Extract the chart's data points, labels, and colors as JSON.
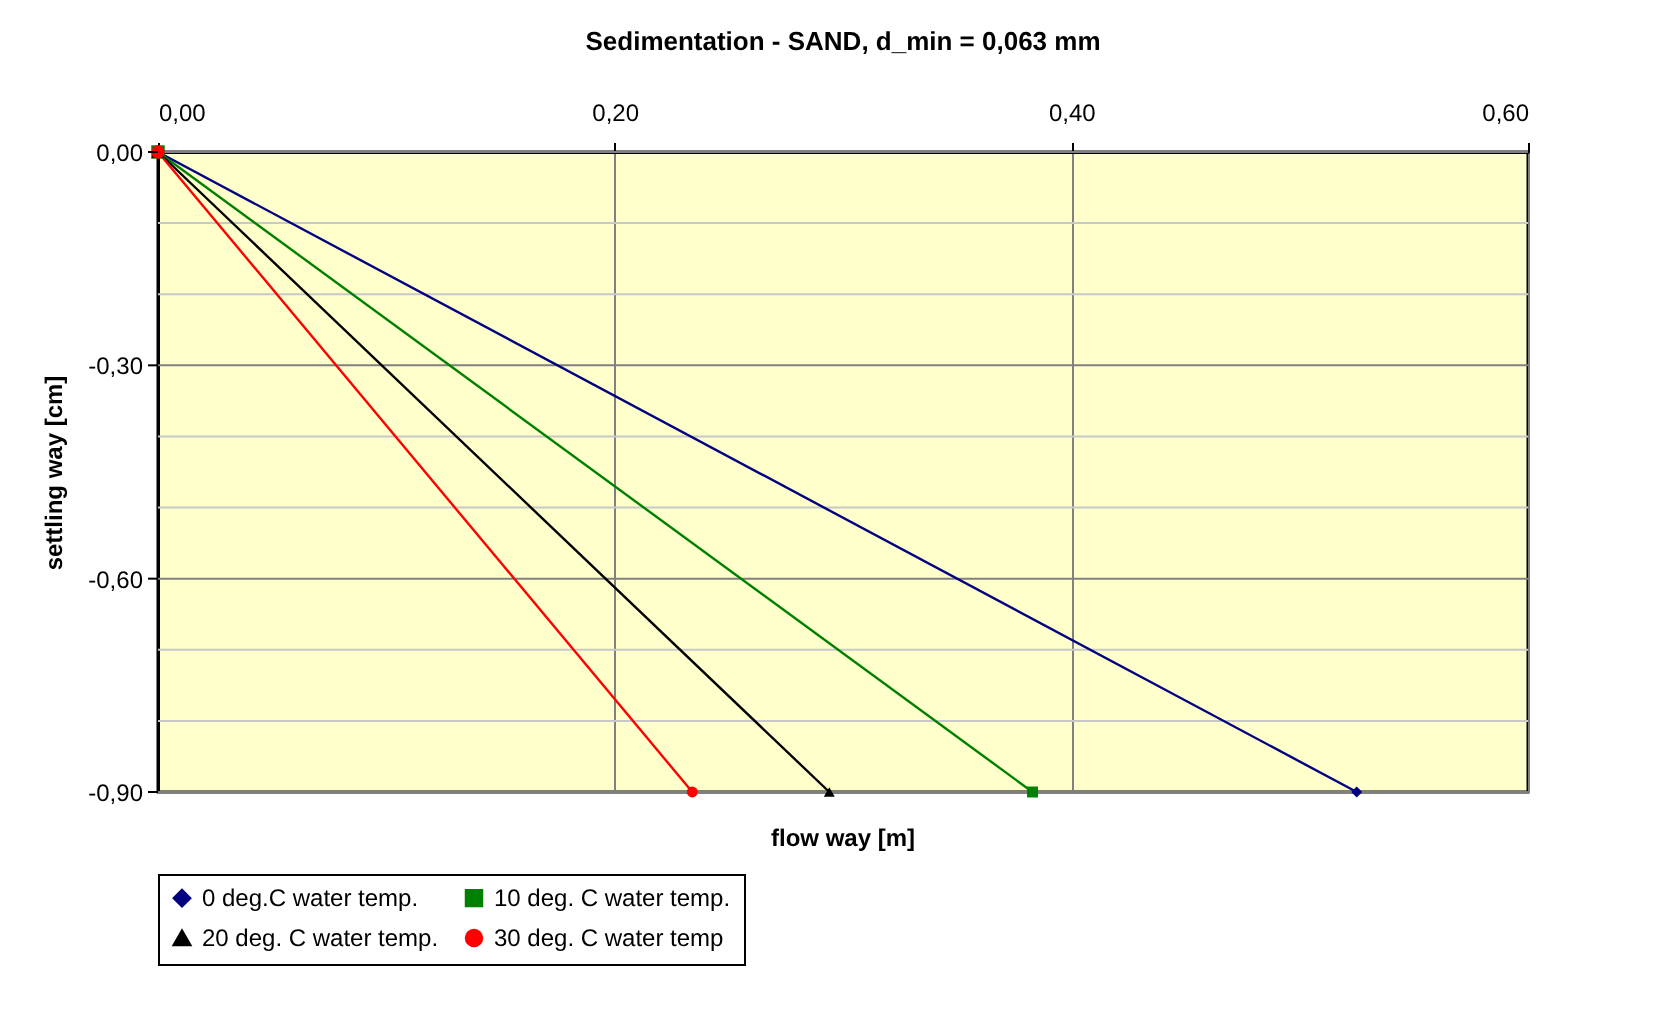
{
  "chart_data": {
    "type": "line",
    "title": "Sedimentation - SAND,  d_min = 0,063 mm",
    "xlabel": "flow way [m]",
    "ylabel": "settling way [cm]",
    "xlim": [
      0,
      0.6
    ],
    "xticks": [
      {
        "value": 0,
        "label": "0,00"
      },
      {
        "value": 0.2,
        "label": "0,20"
      },
      {
        "value": 0.4,
        "label": "0,40"
      },
      {
        "value": 0.6,
        "label": "0,60"
      }
    ],
    "ylim": [
      -0.9,
      0
    ],
    "yticks": [
      {
        "value": 0,
        "label": "0,00"
      },
      {
        "value": -0.1,
        "label": null
      },
      {
        "value": -0.2,
        "label": null
      },
      {
        "value": -0.3,
        "label": "-0,30"
      },
      {
        "value": -0.4,
        "label": null
      },
      {
        "value": -0.5,
        "label": null
      },
      {
        "value": -0.6,
        "label": "-0,60"
      },
      {
        "value": -0.7,
        "label": null
      },
      {
        "value": -0.8,
        "label": null
      },
      {
        "value": -0.9,
        "label": "-0,90"
      }
    ],
    "grid": true,
    "legend": "bottom",
    "line_style": "solid",
    "series": [
      {
        "name": "0 deg.C  water temp.",
        "color": "#000080",
        "marker": "diamond",
        "x": [
          0,
          0.525
        ],
        "values": [
          0,
          -0.9
        ]
      },
      {
        "name": "10 deg. C water temp.",
        "color": "#008000",
        "marker": "square",
        "x": [
          0,
          0.383
        ],
        "values": [
          0,
          -0.9
        ]
      },
      {
        "name": "20 deg. C water temp.",
        "color": "#000000",
        "marker": "triangle",
        "x": [
          0,
          0.294
        ],
        "values": [
          0,
          -0.9
        ]
      },
      {
        "name": "30 deg. C water temp",
        "color": "#ff0000",
        "marker": "circle",
        "x": [
          0,
          0.234
        ],
        "values": [
          0,
          -0.9
        ]
      }
    ]
  }
}
